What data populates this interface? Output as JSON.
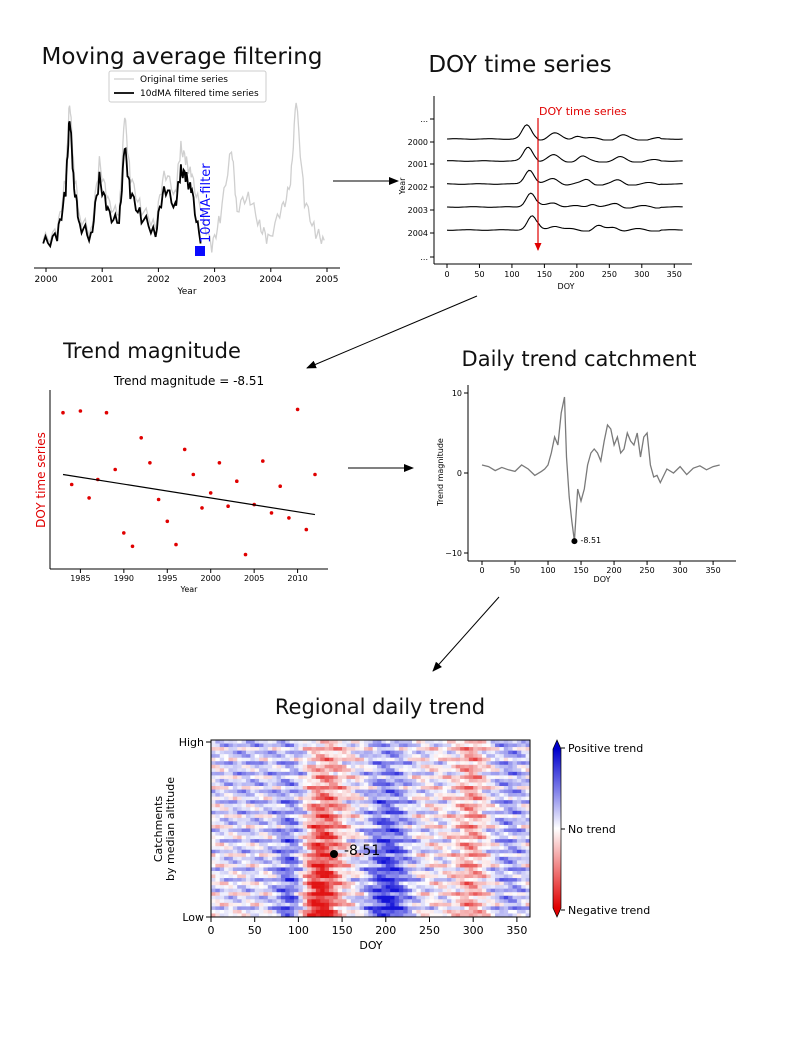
{
  "colors": {
    "original": "#cfcfcf",
    "filtered": "#000000",
    "marker_blue": "#0a0aff",
    "red": "#e00000",
    "trend_curve": "#7a7a7a",
    "cmap_pos": "#1414d8",
    "cmap_neg": "#e01010"
  },
  "panels": {
    "moving_average": {
      "title": "Moving average filtering",
      "legend_original": "Original time series",
      "legend_filtered": "10dMA filtered time series",
      "annotation": "10dMA-filter",
      "xlabel": "Year",
      "xticks": [
        "2000",
        "2001",
        "2002",
        "2003",
        "2004",
        "2005"
      ]
    },
    "doy_series": {
      "title": "DOY time series",
      "annotation": "DOY time series",
      "ylabel": "Year",
      "yticks": [
        "...",
        "2000",
        "2001",
        "2002",
        "2003",
        "2004",
        "..."
      ],
      "xlabel": "DOY",
      "xticks": [
        "0",
        "50",
        "100",
        "150",
        "200",
        "250",
        "300",
        "350"
      ]
    },
    "trend_magnitude": {
      "title": "Trend magnitude",
      "subtitle": "Trend magnitude = -8.51",
      "ylabel": "DOY time series",
      "xlabel": "Year",
      "xticks": [
        "1985",
        "1990",
        "1995",
        "2000",
        "2005",
        "2010"
      ]
    },
    "daily_trend": {
      "title": "Daily trend catchment",
      "ylabel": "Trend magnitude",
      "yticks": [
        "10",
        "0",
        "−10"
      ],
      "xlabel": "DOY",
      "xticks": [
        "0",
        "50",
        "100",
        "150",
        "200",
        "250",
        "300",
        "350"
      ],
      "point_label": "-8.51"
    },
    "regional": {
      "title": "Regional daily trend",
      "ylabel_line1": "Catchments",
      "ylabel_line2": "by median altitude",
      "yticks": [
        "High",
        "Low"
      ],
      "xlabel": "DOY",
      "xticks": [
        "0",
        "50",
        "100",
        "150",
        "200",
        "250",
        "300",
        "350"
      ],
      "point_label": "-8.51",
      "colorbar_labels": [
        "Positive trend",
        "No trend",
        "Negative trend"
      ]
    }
  },
  "chart_data": [
    {
      "type": "line",
      "title": "Moving average filtering",
      "xlabel": "Year",
      "ylabel": "",
      "xlim": [
        2000,
        2005
      ],
      "series": [
        {
          "name": "Original time series",
          "x": [
            1999.95,
            2000.2,
            2000.35,
            2000.42,
            2000.5,
            2000.6,
            2000.8,
            2000.95,
            2001.1,
            2001.3,
            2001.4,
            2001.5,
            2001.7,
            2001.95,
            2002.1,
            2002.3,
            2002.4,
            2002.5,
            2002.6,
            2002.75,
            2002.95,
            2003.1,
            2003.3,
            2003.4,
            2003.6,
            2003.8,
            2003.95,
            2004.2,
            2004.35,
            2004.45,
            2004.6,
            2004.8,
            2004.95
          ],
          "values": [
            0.1,
            0.15,
            0.5,
            1.0,
            0.55,
            0.25,
            0.15,
            0.6,
            0.35,
            0.25,
            0.9,
            0.5,
            0.3,
            0.2,
            0.55,
            0.4,
            0.7,
            0.6,
            0.5,
            0.3,
            0.05,
            0.25,
            0.7,
            0.3,
            0.4,
            0.2,
            0.1,
            0.3,
            0.45,
            1.0,
            0.35,
            0.15,
            0.1
          ]
        },
        {
          "name": "10dMA filtered time series",
          "x": [
            1999.95,
            2000.2,
            2000.35,
            2000.42,
            2000.5,
            2000.6,
            2000.8,
            2000.95,
            2001.1,
            2001.3,
            2001.4,
            2001.5,
            2001.7,
            2001.95,
            2002.1,
            2002.3,
            2002.4,
            2002.5,
            2002.6,
            2002.75
          ],
          "values": [
            0.08,
            0.12,
            0.42,
            0.9,
            0.45,
            0.2,
            0.12,
            0.5,
            0.28,
            0.2,
            0.7,
            0.4,
            0.25,
            0.15,
            0.45,
            0.32,
            0.55,
            0.5,
            0.4,
            0.08
          ]
        }
      ]
    },
    {
      "type": "line",
      "title": "DOY time series",
      "xlabel": "DOY",
      "ylabel": "Year",
      "xlim": [
        0,
        365
      ],
      "categories": [
        "2000",
        "2001",
        "2002",
        "2003",
        "2004"
      ],
      "annotation": {
        "label": "DOY time series",
        "x": 140
      }
    },
    {
      "type": "scatter",
      "title": "Trend magnitude = -8.51",
      "xlabel": "Year",
      "ylabel": "DOY time series",
      "xlim": [
        1981.5,
        2013.5
      ],
      "ylim": [
        0,
        100
      ],
      "x": [
        1983,
        1984,
        1985,
        1986,
        1987,
        1988,
        1989,
        1990,
        1991,
        1992,
        1993,
        1994,
        1995,
        1996,
        1997,
        1998,
        1999,
        2000,
        2001,
        2002,
        2003,
        2004,
        2005,
        2006,
        2007,
        2008,
        2009,
        2010,
        2011,
        2012
      ],
      "y": [
        90,
        47,
        91,
        39,
        50,
        90,
        56,
        18,
        10,
        75,
        60,
        38,
        25,
        11,
        68,
        53,
        33,
        42,
        60,
        34,
        49,
        5,
        35,
        61,
        30,
        46,
        27,
        92,
        20,
        53
      ],
      "trend_line": {
        "x": [
          1983,
          2012
        ],
        "y": [
          53,
          29
        ]
      }
    },
    {
      "type": "line",
      "title": "Daily trend catchment",
      "xlabel": "DOY",
      "ylabel": "Trend magnitude",
      "xlim": [
        -15,
        380
      ],
      "ylim": [
        -11,
        11
      ],
      "x": [
        0,
        10,
        20,
        30,
        40,
        50,
        60,
        70,
        80,
        90,
        95,
        100,
        105,
        110,
        115,
        120,
        125,
        128,
        132,
        136,
        140,
        145,
        150,
        155,
        160,
        165,
        170,
        175,
        180,
        185,
        190,
        195,
        200,
        205,
        210,
        215,
        220,
        225,
        230,
        235,
        240,
        245,
        250,
        255,
        260,
        265,
        270,
        280,
        290,
        300,
        310,
        320,
        330,
        340,
        350,
        360
      ],
      "y": [
        1,
        0.8,
        0.3,
        0.7,
        0.4,
        0.2,
        1.0,
        0.5,
        -0.3,
        0.2,
        0.5,
        1.0,
        2.5,
        4.5,
        3.5,
        7.5,
        9.5,
        2.0,
        -3.0,
        -6.0,
        -8.51,
        -2.0,
        -3.5,
        -2.0,
        1.0,
        2.5,
        3.0,
        2.5,
        1.5,
        4.0,
        6.0,
        5.5,
        3.5,
        4.5,
        2.5,
        3.0,
        5.0,
        4.0,
        3.5,
        5.0,
        2.0,
        4.5,
        5.0,
        1.0,
        -0.5,
        -0.3,
        -1.2,
        0.5,
        0.0,
        0.8,
        -0.2,
        0.6,
        0.9,
        0.4,
        0.8,
        1.0
      ],
      "highlight": {
        "x": 140,
        "y": -8.51,
        "label": "-8.51"
      }
    },
    {
      "type": "heatmap",
      "title": "Regional daily trend",
      "xlabel": "DOY",
      "ylabel": "Catchments by median altitude",
      "xlim": [
        0,
        365
      ],
      "y_categories": [
        "Low",
        "High"
      ],
      "colorbar": [
        "Negative trend",
        "No trend",
        "Positive trend"
      ],
      "highlight": {
        "x": 140,
        "label": "-8.51"
      }
    }
  ]
}
